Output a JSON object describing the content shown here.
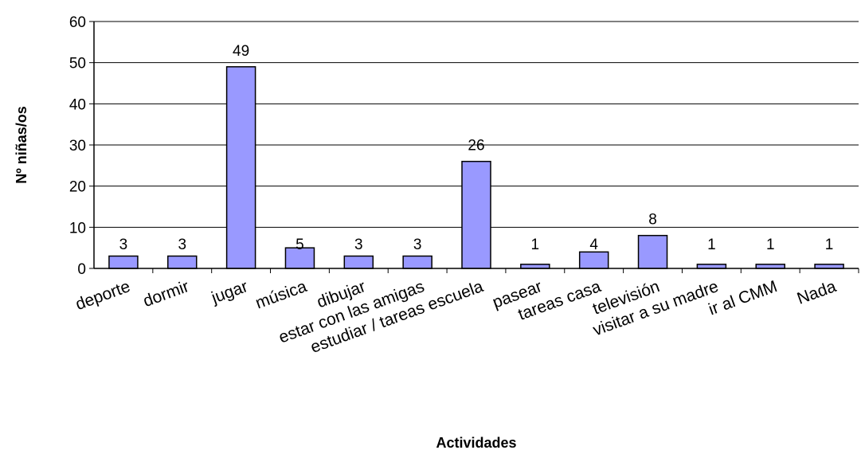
{
  "chart_data": {
    "type": "bar",
    "title": "",
    "xlabel": "Actividades",
    "ylabel": "Nº niñas/os",
    "categories": [
      "deporte",
      "dormir",
      "jugar",
      "música",
      "dibujar",
      "estar con las amigas",
      "estudiar / tareas escuela",
      "pasear",
      "tareas casa",
      "televisión",
      "visitar a su madre",
      "ir al CMM",
      "Nada"
    ],
    "values": [
      3,
      3,
      49,
      5,
      3,
      3,
      26,
      1,
      4,
      8,
      1,
      1,
      1
    ],
    "ylim": [
      0,
      60
    ],
    "yticks": [
      0,
      10,
      20,
      30,
      40,
      50,
      60
    ],
    "grid": true,
    "legend": "none",
    "colors": {
      "bar_fill": "#9999ff",
      "bar_stroke": "#000000",
      "gridline": "#000000"
    }
  }
}
